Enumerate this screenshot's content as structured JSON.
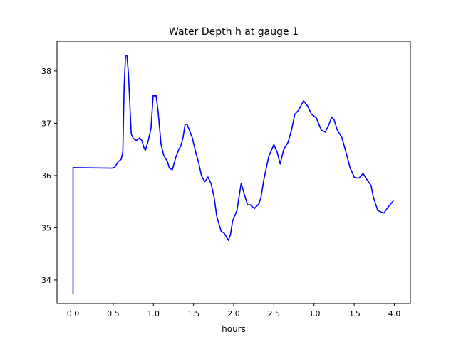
{
  "chart_data": {
    "type": "line",
    "title": "Water Depth h at gauge 1",
    "xlabel": "hours",
    "ylabel": "",
    "xlim": [
      -0.2,
      4.2
    ],
    "ylim": [
      33.55,
      38.57
    ],
    "xticks": [
      0.0,
      0.5,
      1.0,
      1.5,
      2.0,
      2.5,
      3.0,
      3.5,
      4.0
    ],
    "xtick_labels": [
      "0.0",
      "0.5",
      "1.0",
      "1.5",
      "2.0",
      "2.5",
      "3.0",
      "3.5",
      "4.0"
    ],
    "yticks": [
      34,
      35,
      36,
      37,
      38
    ],
    "ytick_labels": [
      "34",
      "35",
      "36",
      "37",
      "38"
    ],
    "grid": false,
    "series": [
      {
        "name": "gauge 1",
        "color": "#0000ff",
        "x": [
          0,
          0,
          0.486,
          0.52,
          0.565,
          0.6,
          0.62,
          0.636,
          0.653,
          0.67,
          0.689,
          0.724,
          0.75,
          0.786,
          0.83,
          0.856,
          0.883,
          0.9,
          0.936,
          0.97,
          0.998,
          1.015,
          1.033,
          1.06,
          1.095,
          1.13,
          1.174,
          1.2,
          1.236,
          1.28,
          1.316,
          1.34,
          1.37,
          1.395,
          1.42,
          1.483,
          1.528,
          1.563,
          1.6,
          1.64,
          1.68,
          1.72,
          1.757,
          1.79,
          1.845,
          1.88,
          1.934,
          1.96,
          1.987,
          2.04,
          2.093,
          2.13,
          2.172,
          2.208,
          2.234,
          2.26,
          2.314,
          2.34,
          2.375,
          2.437,
          2.5,
          2.543,
          2.578,
          2.623,
          2.675,
          2.72,
          2.76,
          2.808,
          2.87,
          2.92,
          2.966,
          3.03,
          3.09,
          3.14,
          3.187,
          3.22,
          3.25,
          3.29,
          3.347,
          3.39,
          3.45,
          3.505,
          3.56,
          3.61,
          3.655,
          3.71,
          3.74,
          3.795,
          3.87,
          3.92,
          3.99
        ],
        "y": [
          33.74,
          36.15,
          36.14,
          36.16,
          36.27,
          36.31,
          36.46,
          37.69,
          38.3,
          38.3,
          37.96,
          36.79,
          36.71,
          36.67,
          36.72,
          36.67,
          36.53,
          36.48,
          36.67,
          36.9,
          37.54,
          37.52,
          37.54,
          37.21,
          36.6,
          36.38,
          36.27,
          36.14,
          36.11,
          36.35,
          36.5,
          36.56,
          36.73,
          36.98,
          36.98,
          36.73,
          36.44,
          36.25,
          35.99,
          35.88,
          35.97,
          35.84,
          35.58,
          35.21,
          34.93,
          34.9,
          34.76,
          34.87,
          35.13,
          35.33,
          35.85,
          35.65,
          35.44,
          35.44,
          35.4,
          35.37,
          35.46,
          35.58,
          35.92,
          36.37,
          36.59,
          36.44,
          36.22,
          36.5,
          36.63,
          36.87,
          37.17,
          37.25,
          37.43,
          37.33,
          37.18,
          37.1,
          36.87,
          36.83,
          36.98,
          37.12,
          37.07,
          36.87,
          36.73,
          36.49,
          36.14,
          35.96,
          35.95,
          36.04,
          35.93,
          35.81,
          35.58,
          35.33,
          35.28,
          35.39,
          35.52
        ]
      }
    ]
  }
}
